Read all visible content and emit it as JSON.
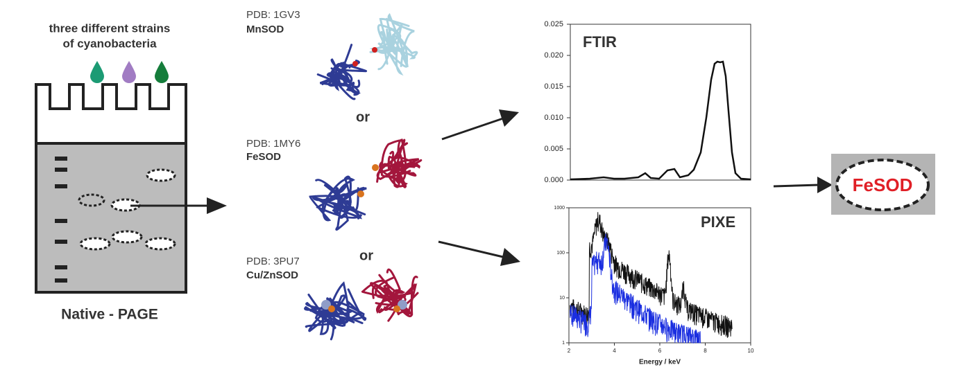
{
  "gel": {
    "sample_label_line1": "three different strains",
    "sample_label_line2": "of cyanobacteria",
    "caption": "Native - PAGE"
  },
  "structures": [
    {
      "pdb": "PDB: 1GV3",
      "name": "MnSOD"
    },
    {
      "pdb": "PDB: 1MY6",
      "name": "FeSOD"
    },
    {
      "pdb": "PDB: 3PU7",
      "name": "Cu/ZnSOD"
    }
  ],
  "separators": [
    "or",
    "or"
  ],
  "ftir": {
    "title": "FTIR",
    "ylim": [
      0,
      0.025
    ],
    "yticks": [
      {
        "value": 0,
        "label": "0.000"
      },
      0.005,
      {
        "value": 0.01,
        "label": "0.010"
      },
      0.015,
      {
        "value": 0.02,
        "label": "0.020"
      },
      0.025
    ]
  },
  "pixe": {
    "title": "PIXE",
    "xlabel": "Energy / keV",
    "xlim": [
      2,
      10
    ],
    "xticks": [
      2,
      4,
      6,
      8,
      10
    ],
    "ylim": [
      1,
      1000
    ],
    "yticks": [
      1,
      10,
      100,
      1000
    ],
    "log_y": true
  },
  "result": {
    "label": "FeSOD"
  }
}
